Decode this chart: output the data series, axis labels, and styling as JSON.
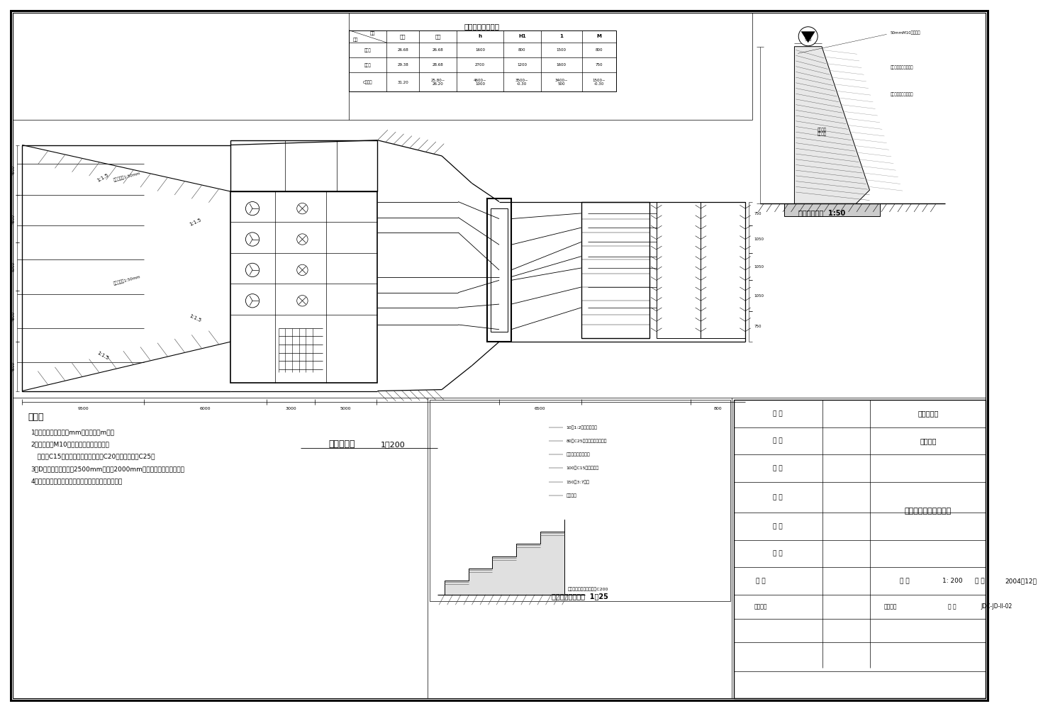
{
  "bg_color": "#ffffff",
  "line_color": "#000000",
  "table_title": "挡土墙剖面尺寸表",
  "label_plan": "平面布置图",
  "scale_plan": "1：200",
  "label_wall": "挡土墙结构图",
  "scale_wall": "1:50",
  "label_step": "踏步、台阶大样图",
  "scale_step": "1：25",
  "notes_title": "说明：",
  "notes": [
    "1、图中尺寸单位为以mm计，高程以m计；",
    "2、浆砌石用M10砂浆砌筑，勾缝后砌筑；",
    "   砼垫层C15，砼钢筋支撑泵底均采用C20；钢筋砼采用C25；",
    "3、D挡土墙在墙高大于2500mm时，在2000mm墙高处墙设排水孔一排；",
    "4、挡土墙及浆砌石护坡护底之间设二格三渣沉降缝。"
  ],
  "title_rows": [
    "批 准",
    "核 定",
    "审 查",
    "核 对",
    "设 计",
    "描 图"
  ],
  "company": "施工图设计",
  "dept": "水工部分",
  "drawing_name": "涧东二级站平面布置图",
  "scale_tb": "1: 200",
  "date_tb": "2004年12月",
  "drawing_no": "JDC-JD-II-02"
}
